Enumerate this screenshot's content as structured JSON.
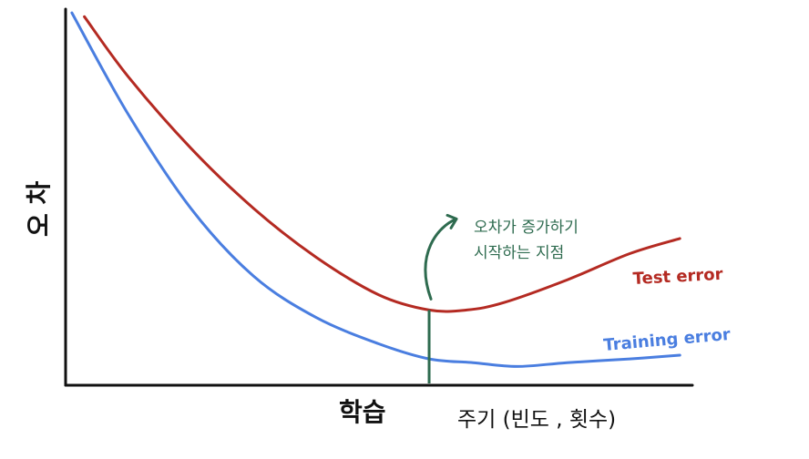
{
  "chart_data": {
    "type": "line",
    "title": "",
    "ylabel": "오 차",
    "xlabel_main": "학습",
    "xlabel_sub": "주기 (빈도 , 횟수)",
    "xlim": [
      0,
      100
    ],
    "ylim": [
      0,
      100
    ],
    "grid": false,
    "legend": "inline-right",
    "series": [
      {
        "name": "Test error",
        "color": "#b42a22",
        "x": [
          3,
          10,
          20,
          30,
          40,
          50,
          58,
          64,
          70,
          80,
          90,
          98
        ],
        "y": [
          98,
          82,
          63,
          47,
          34,
          24,
          20,
          20,
          22,
          28,
          35,
          39
        ]
      },
      {
        "name": "Training error",
        "color": "#4a7ee0",
        "x": [
          1,
          10,
          20,
          30,
          40,
          50,
          58,
          65,
          72,
          80,
          90,
          98
        ],
        "y": [
          99,
          72,
          47,
          29,
          18,
          11,
          7,
          6,
          5,
          6,
          7,
          8
        ]
      }
    ],
    "annotation": {
      "text_line1": "오차가 증가하기",
      "text_line2": "시작하는 지점",
      "x": 58,
      "color": "#2e6b4f"
    }
  }
}
